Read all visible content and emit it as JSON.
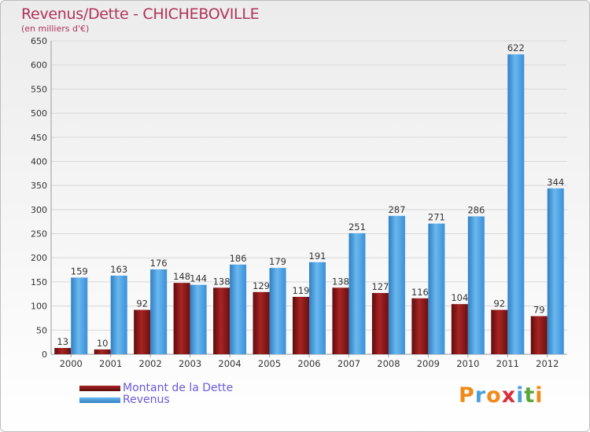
{
  "title": "Revenus/Dette - CHICHEBOVILLE",
  "subtitle": "(en milliers d'€)",
  "legend": {
    "debt_label": "Montant de la Dette",
    "revenue_label": "Revenus"
  },
  "logo": {
    "letters": [
      "P",
      "r",
      "o",
      "x",
      "i",
      "t",
      "i"
    ],
    "colors": [
      "#f08a1a",
      "#4aa0d8",
      "#f08a1a",
      "#d8303a",
      "#4aa0d8",
      "#5aa83a",
      "#f08a1a"
    ]
  },
  "colors": {
    "debt": "#7a1414",
    "debt_light": "#a82424",
    "revenue": "#3a8fd8",
    "revenue_light": "#6ab8ee",
    "title": "#b0325a",
    "legend_text": "#6a5ad8"
  },
  "chart_data": {
    "type": "bar",
    "title": "Revenus/Dette - CHICHEBOVILLE",
    "subtitle": "(en milliers d'€)",
    "categories": [
      "2000",
      "2001",
      "2002",
      "2003",
      "2004",
      "2005",
      "2006",
      "2007",
      "2008",
      "2009",
      "2010",
      "2011",
      "2012"
    ],
    "series": [
      {
        "name": "Montant de la Dette",
        "values": [
          13,
          10,
          92,
          148,
          138,
          129,
          119,
          138,
          127,
          116,
          104,
          92,
          79
        ]
      },
      {
        "name": "Revenus",
        "values": [
          159,
          163,
          176,
          144,
          186,
          179,
          191,
          251,
          287,
          271,
          286,
          622,
          344
        ]
      }
    ],
    "ylim": [
      0,
      650
    ],
    "yticks": [
      0,
      50,
      100,
      150,
      200,
      250,
      300,
      350,
      400,
      450,
      500,
      550,
      600,
      650
    ],
    "grid": true,
    "legend_position": "bottom-left"
  }
}
